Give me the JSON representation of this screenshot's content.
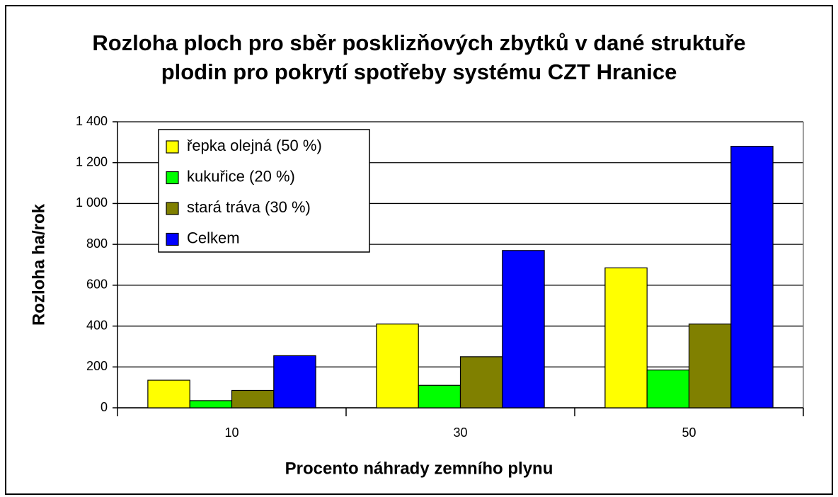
{
  "chart_data": {
    "type": "bar",
    "title": "Rozloha ploch pro sběr posklizňových zbytků v dané struktuře plodin pro pokrytí spotřeby systému CZT Hranice",
    "x_label": "Procento náhrady zemního plynu",
    "y_label": "Rozloha ha/rok",
    "categories": [
      "10",
      "30",
      "50"
    ],
    "series": [
      {
        "name": "řepka olejná (50 %)",
        "color": "#ffff00",
        "values": [
          135,
          410,
          685
        ]
      },
      {
        "name": "kukuřice (20 %)",
        "color": "#00ff00",
        "values": [
          35,
          110,
          185
        ]
      },
      {
        "name": "stará tráva (30 %)",
        "color": "#808000",
        "values": [
          85,
          250,
          410
        ]
      },
      {
        "name": "Celkem",
        "color": "#0000ff",
        "values": [
          255,
          770,
          1280
        ]
      }
    ],
    "ylim": [
      0,
      1400
    ],
    "yticks": [
      0,
      200,
      400,
      600,
      800,
      {
        "value": 1000,
        "label": "1 000"
      },
      {
        "value": 1200,
        "label": "1 200"
      },
      {
        "value": 1400,
        "label": "1 400"
      }
    ],
    "grid": true,
    "legend": "upper left"
  }
}
